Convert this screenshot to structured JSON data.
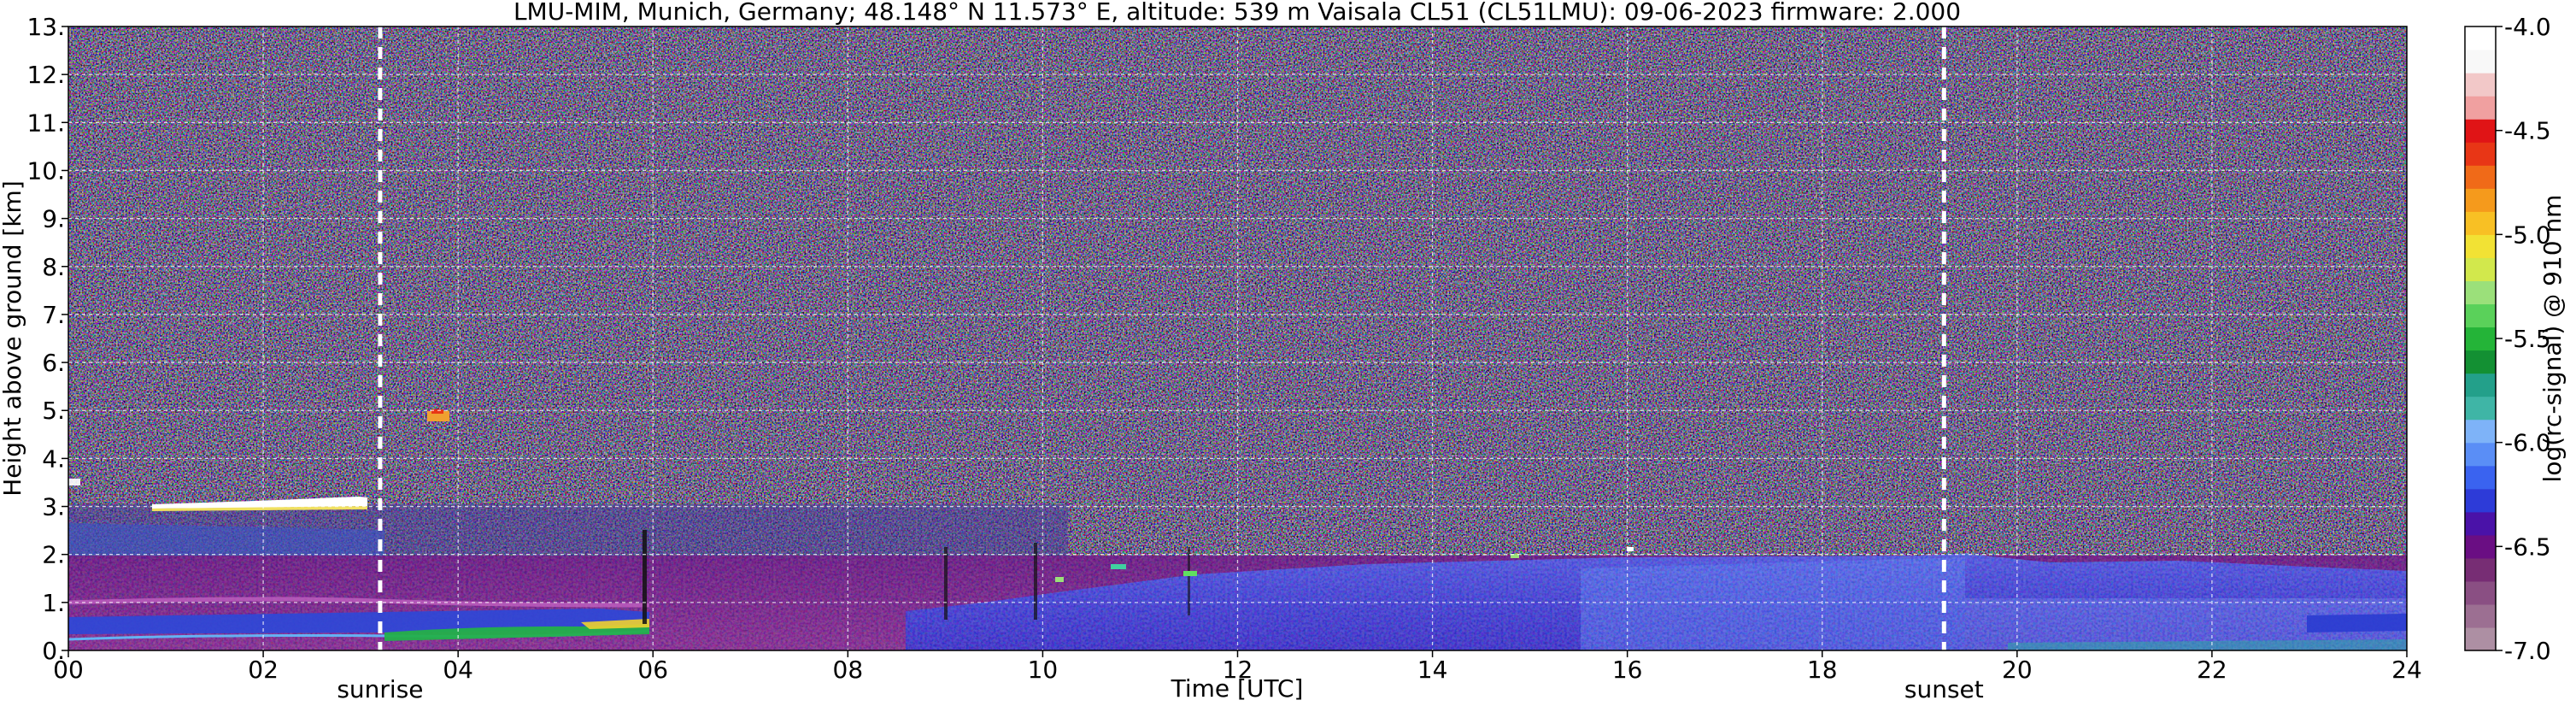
{
  "chart_data": {
    "type": "heatmap",
    "title": "LMU-MIM, Munich, Germany; 48.148° N 11.573° E, altitude: 539 m    Vaisala CL51 (CL51LMU): 09-06-2023    firmware: 2.000",
    "xlabel": "Time [UTC]",
    "ylabel": "Height above ground [km]",
    "xlim": [
      0,
      24
    ],
    "ylim": [
      0,
      13
    ],
    "grid": true,
    "x_ticks": [
      0,
      2,
      4,
      6,
      8,
      10,
      12,
      14,
      16,
      18,
      20,
      22,
      24
    ],
    "x_tick_labels": [
      "00",
      "02",
      "04",
      "06",
      "08",
      "10",
      "12",
      "14",
      "16",
      "18",
      "20",
      "22",
      "24"
    ],
    "y_ticks": [
      0,
      1,
      2,
      3,
      4,
      5,
      6,
      7,
      8,
      9,
      10,
      11,
      12,
      13
    ],
    "y_tick_labels": [
      "0.",
      "1.",
      "2.",
      "3.",
      "4.",
      "5.",
      "6.",
      "7.",
      "8.",
      "9.",
      "10.",
      "11.",
      "12.",
      "13."
    ],
    "colorbar": {
      "label": "log(rc-signal) @ 910 nm",
      "range": [
        -7.0,
        -4.0
      ],
      "ticks": [
        -4.0,
        -4.5,
        -5.0,
        -5.5,
        -6.0,
        -6.5,
        -7.0
      ],
      "tick_labels": [
        "-4.0",
        "-4.5",
        "-5.0",
        "-5.5",
        "-6.0",
        "-6.5",
        "-7.0"
      ],
      "colors": [
        "#ad8fa3",
        "#9c6f92",
        "#8a4f83",
        "#772d74",
        "#6a0e83",
        "#4a12a8",
        "#2d3bd8",
        "#3a63f0",
        "#5a8ef6",
        "#7eb3f8",
        "#3fb5a6",
        "#23a08a",
        "#139033",
        "#24b438",
        "#5ad15a",
        "#9be07a",
        "#d2e84c",
        "#f2e234",
        "#f8c024",
        "#f59a1c",
        "#f06a18",
        "#e83616",
        "#e01416",
        "#f0a0a0",
        "#f2c8c8",
        "#f8f8f8",
        "#ffffff"
      ]
    },
    "vertical_markers": [
      {
        "x": 3.2,
        "label": "sunrise",
        "style": "dashed"
      },
      {
        "x": 19.25,
        "label": "sunset",
        "style": "dashed"
      }
    ]
  }
}
